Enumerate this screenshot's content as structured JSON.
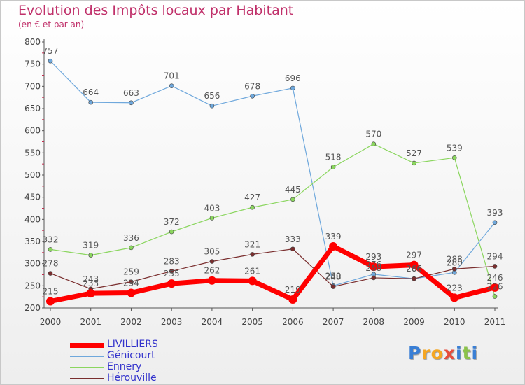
{
  "chart_data": {
    "type": "line",
    "title": "Evolution des Impôts locaux par Habitant",
    "subtitle": "(en € et par an)",
    "x": [
      "2000",
      "2001",
      "2002",
      "2003",
      "2004",
      "2005",
      "2006",
      "2007",
      "2008",
      "2009",
      "2010",
      "2011"
    ],
    "ylim": [
      200,
      800
    ],
    "yticks": [
      200,
      250,
      300,
      350,
      400,
      450,
      500,
      550,
      600,
      650,
      700,
      750,
      800
    ],
    "grid": false,
    "legend_position": "bottom-left",
    "series": [
      {
        "name": "LIVILLIERS",
        "color": "#ff0000",
        "values": [
          215,
          233,
          234,
          255,
          262,
          261,
          219,
          339,
          293,
          297,
          223,
          246
        ],
        "labels": [
          "215",
          "233",
          "234",
          "255",
          "262",
          "261",
          "219",
          "339",
          "293",
          "297",
          "223",
          "246"
        ]
      },
      {
        "name": "Génicourt",
        "color": "#6fa8dc",
        "values": [
          757,
          664,
          663,
          701,
          656,
          678,
          696,
          250,
          276,
          266,
          280,
          393
        ],
        "labels": [
          "757",
          "664",
          "663",
          "701",
          "656",
          "678",
          "696",
          "250",
          "276",
          "266",
          "280",
          "393"
        ]
      },
      {
        "name": "Ennery",
        "color": "#8bd65f",
        "values": [
          332,
          319,
          336,
          372,
          403,
          427,
          445,
          518,
          570,
          527,
          539,
          226
        ],
        "labels": [
          "332",
          "319",
          "336",
          "372",
          "403",
          "427",
          "445",
          "518",
          "570",
          "527",
          "539",
          "226"
        ]
      },
      {
        "name": "Hérouville",
        "color": "#7a2e2e",
        "values": [
          278,
          243,
          259,
          283,
          305,
          321,
          333,
          248,
          268,
          266,
          288,
          294
        ],
        "labels": [
          "278",
          "243",
          "259",
          "283",
          "305",
          "321",
          "333",
          "248",
          "268",
          "266",
          "288",
          "294"
        ]
      }
    ]
  },
  "brand": {
    "letters": [
      "P",
      "r",
      "o",
      "x",
      "i",
      "t",
      "i"
    ],
    "colors": [
      "#3a7fd5",
      "#f5a623",
      "#f5a623",
      "#e74c3c",
      "#3a7fd5",
      "#8bc34a",
      "#3a7fd5"
    ]
  }
}
